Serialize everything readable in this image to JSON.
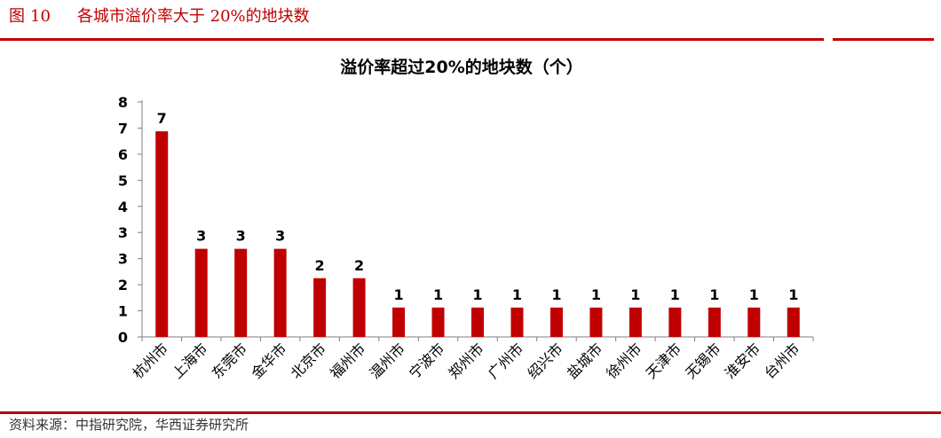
{
  "figure": {
    "label": "图",
    "number": "10",
    "caption": "各城市溢价率大于 20%的地块数",
    "source": "资料来源：中指研究院，华西证券研究所",
    "accent_color": "#c00000"
  },
  "chart_data": {
    "type": "bar",
    "title": "溢价率超过20%的地块数（个）",
    "categories": [
      "杭州市",
      "上海市",
      "东莞市",
      "金华市",
      "北京市",
      "福州市",
      "温州市",
      "宁波市",
      "郑州市",
      "广州市",
      "绍兴市",
      "盐城市",
      "徐州市",
      "天津市",
      "无锡市",
      "淮安市",
      "台州市"
    ],
    "values": [
      7,
      3,
      3,
      3,
      2,
      2,
      1,
      1,
      1,
      1,
      1,
      1,
      1,
      1,
      1,
      1,
      1
    ],
    "yticks": [
      "0",
      "1",
      "2",
      "3",
      "3",
      "4",
      "5",
      "6",
      "7",
      "8"
    ],
    "ylim": [
      0,
      8
    ],
    "bar_color": "#c00000",
    "grid": false,
    "legend": "none"
  }
}
